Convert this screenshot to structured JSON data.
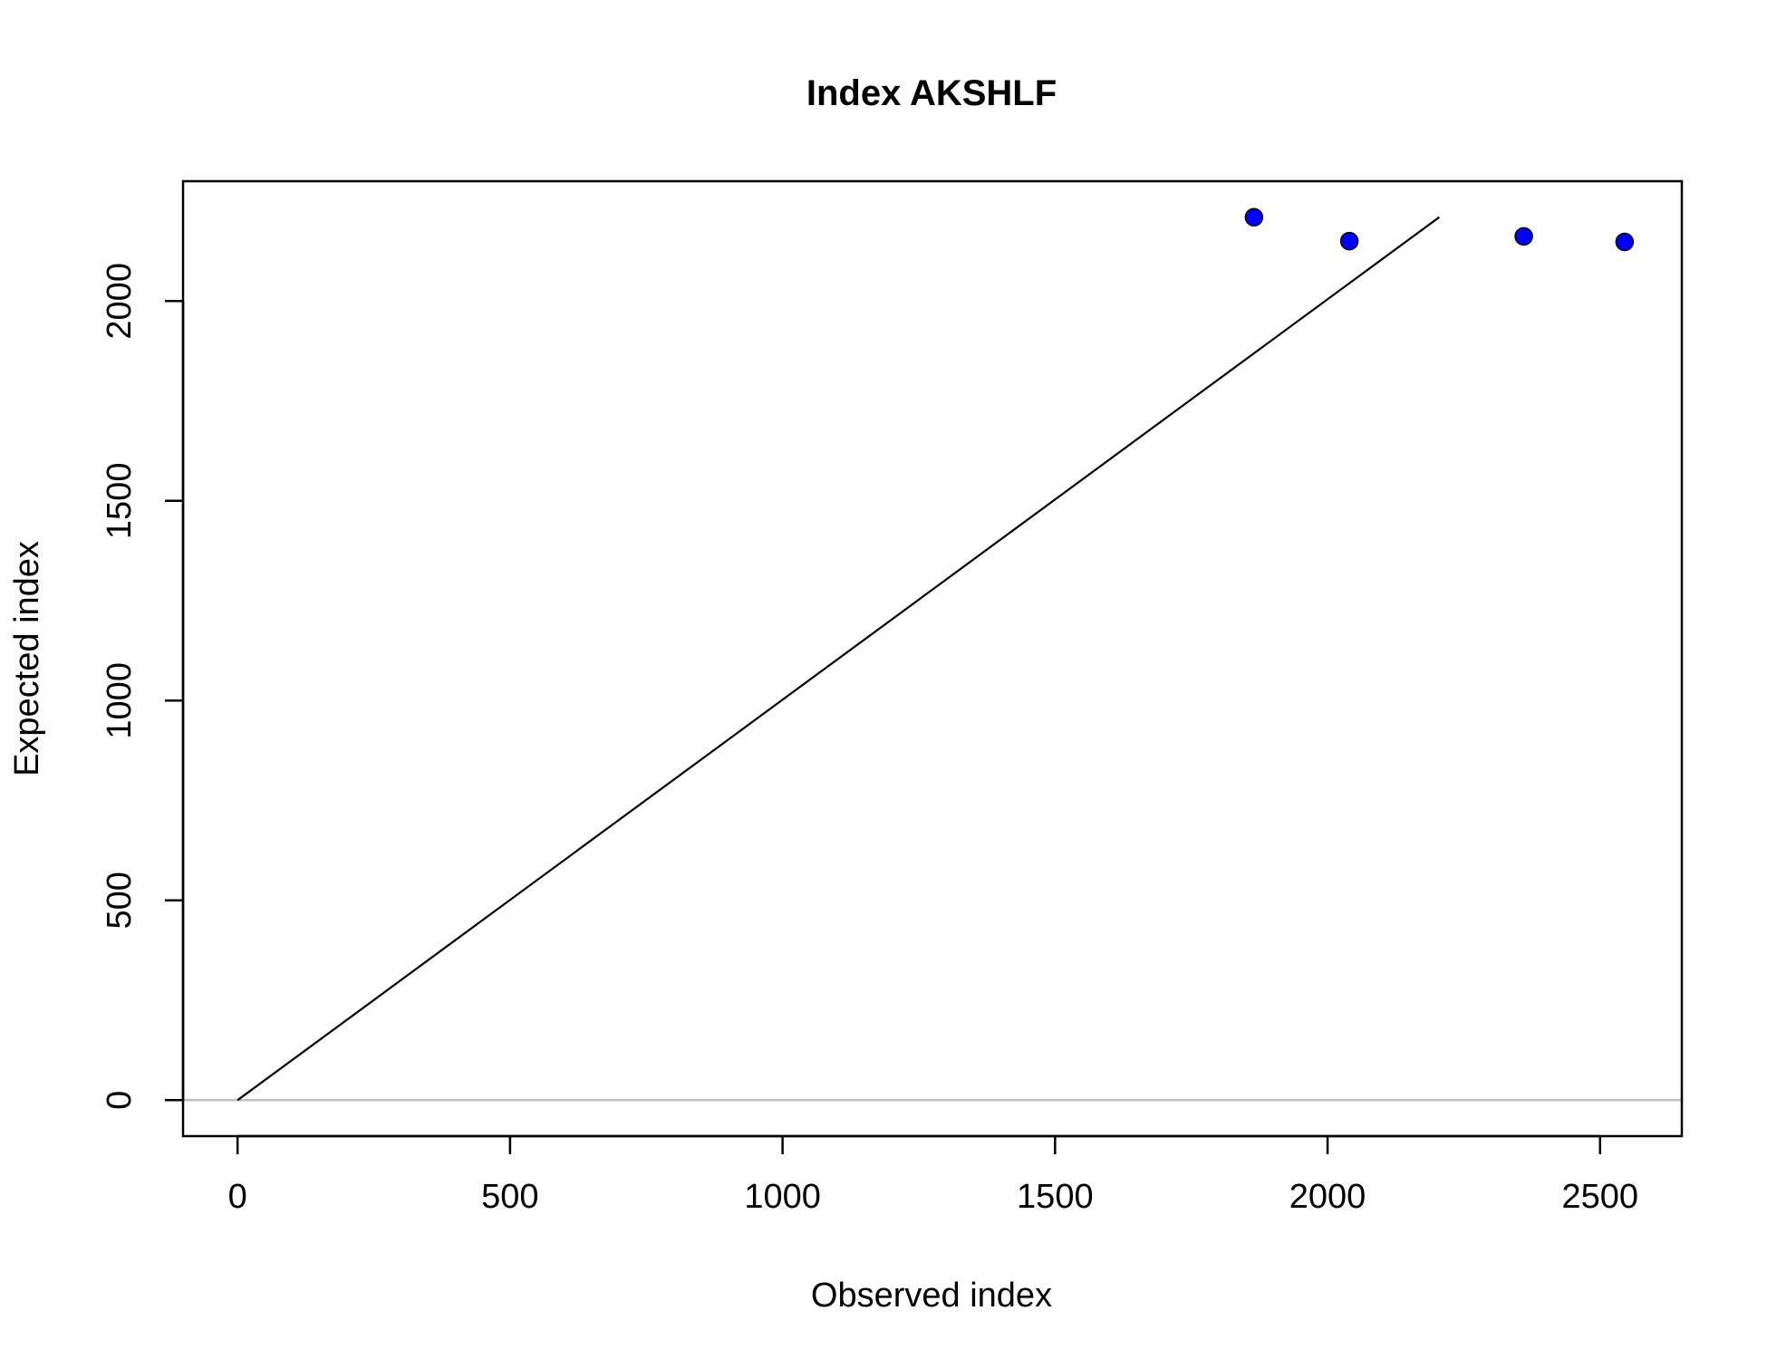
{
  "chart_data": {
    "type": "scatter",
    "title": "Index AKSHLF",
    "xlabel": "Observed index",
    "ylabel": "Expected index",
    "xlim": [
      -100,
      2650
    ],
    "ylim": [
      -90,
      2300
    ],
    "x_ticks": [
      0,
      500,
      1000,
      1500,
      2000,
      2500
    ],
    "y_ticks": [
      0,
      500,
      1000,
      1500,
      2000
    ],
    "points": [
      {
        "x": 1865,
        "y": 2210
      },
      {
        "x": 2040,
        "y": 2150
      },
      {
        "x": 2360,
        "y": 2162
      },
      {
        "x": 2545,
        "y": 2148
      }
    ],
    "reference_line": {
      "x": [
        0,
        2205
      ],
      "y": [
        0,
        2210
      ]
    },
    "horizontal_line_y": 0,
    "point_color": "#0000ff",
    "reference_line_color": "#000000",
    "horizontal_line_color": "#bebebe",
    "grid": false,
    "legend": "none"
  }
}
